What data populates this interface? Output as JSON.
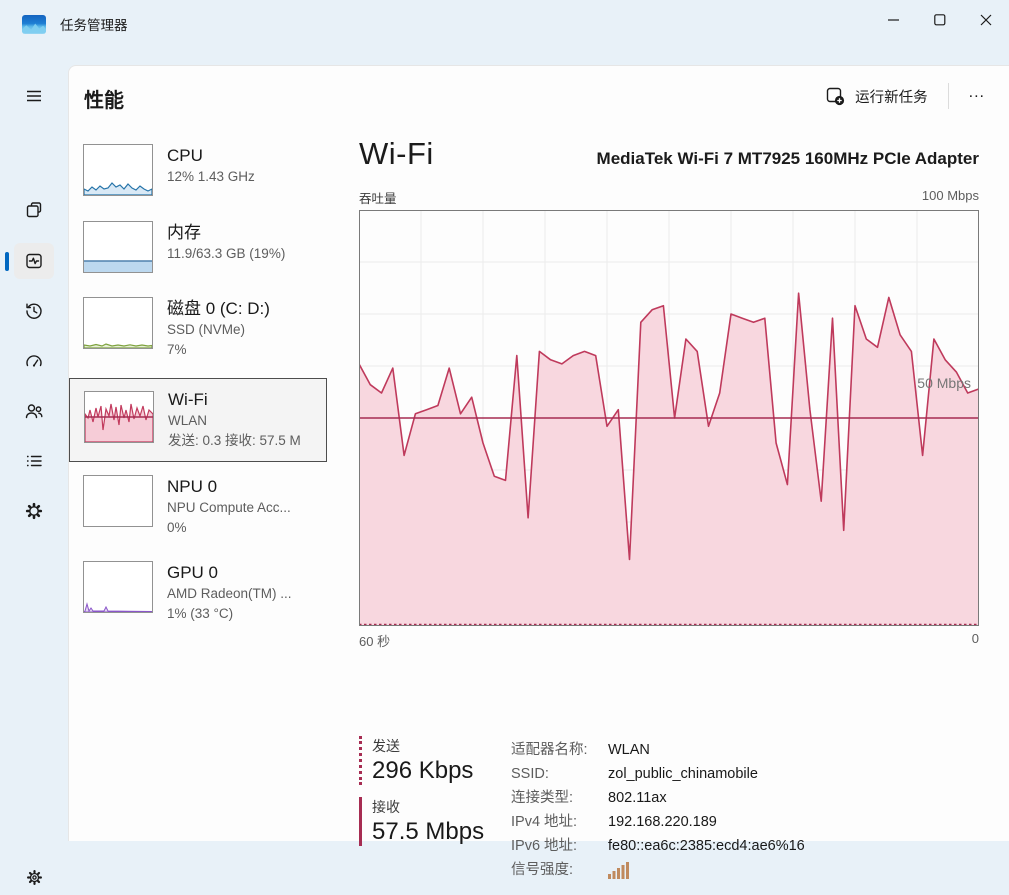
{
  "window": {
    "title": "任务管理器"
  },
  "header": {
    "title": "性能",
    "run_new_task": "运行新任务",
    "more": "..."
  },
  "sidebar_list": {
    "items": [
      {
        "title": "CPU",
        "line2": "12% 1.43 GHz",
        "line3": ""
      },
      {
        "title": "内存",
        "line2": "11.9/63.3 GB (19%)",
        "line3": ""
      },
      {
        "title": "磁盘 0 (C: D:)",
        "line2": "SSD (NVMe)",
        "line3": "7%"
      },
      {
        "title": "Wi-Fi",
        "line2": "WLAN",
        "line3": "发送: 0.3 接收: 57.5 M"
      },
      {
        "title": "NPU 0",
        "line2": "NPU Compute Acc...",
        "line3": "0%"
      },
      {
        "title": "GPU 0",
        "line2": "AMD Radeon(TM) ...",
        "line3": "1% (33 °C)"
      }
    ]
  },
  "main": {
    "title": "Wi-Fi",
    "adapter": "MediaTek Wi-Fi 7 MT7925 160MHz PCIe Adapter",
    "chart_top_left": "吞吐量",
    "chart_top_right": "100 Mbps",
    "chart_mid_label": "50 Mbps",
    "chart_bottom_left": "60 秒",
    "chart_bottom_right": "0",
    "stats": [
      {
        "label": "发送",
        "value": "296 Kbps"
      },
      {
        "label": "接收",
        "value": "57.5 Mbps"
      }
    ],
    "details": [
      {
        "label": "适配器名称:",
        "value": "WLAN"
      },
      {
        "label": "SSID:",
        "value": "zol_public_chinamobile"
      },
      {
        "label": "连接类型:",
        "value": "802.11ax"
      },
      {
        "label": "IPv4 地址:",
        "value": "192.168.220.189"
      },
      {
        "label": "IPv6 地址:",
        "value": "fe80::ea6c:2385:ecd4:ae6%16"
      },
      {
        "label": "信号强度:",
        "value": ""
      }
    ]
  },
  "chart_data": {
    "type": "area",
    "title": "吞吐量",
    "ylabel": "Mbps",
    "ylim": [
      0,
      100
    ],
    "x_span_seconds": 60,
    "grid": {
      "columns": 10,
      "rows": 8
    },
    "legend": [
      {
        "name": "接收",
        "style": "solid",
        "current": "57.5 Mbps"
      },
      {
        "name": "发送",
        "style": "dotted",
        "current": "296 Kbps"
      }
    ],
    "series": [
      {
        "name": "receive_mbps",
        "values": [
          63,
          58,
          56,
          62,
          41,
          51,
          52,
          53,
          62,
          51,
          55,
          44,
          36,
          35,
          65,
          26,
          66,
          64,
          63,
          65,
          66,
          65,
          48,
          52,
          16,
          73,
          76,
          77,
          50,
          69,
          66,
          48,
          56,
          75,
          74,
          73,
          74,
          44,
          34,
          80,
          52,
          30,
          74,
          23,
          77,
          69,
          67,
          79,
          70,
          66,
          41,
          69,
          64,
          61,
          56,
          57
        ]
      },
      {
        "name": "send_mbps",
        "values": [
          0.3
        ]
      }
    ],
    "colors": {
      "line": "#bf3a5c",
      "fill": "#f8d7df",
      "mid_line": "#a62c52",
      "grid": "#ebebeb",
      "border": "#7a7a7a"
    }
  }
}
